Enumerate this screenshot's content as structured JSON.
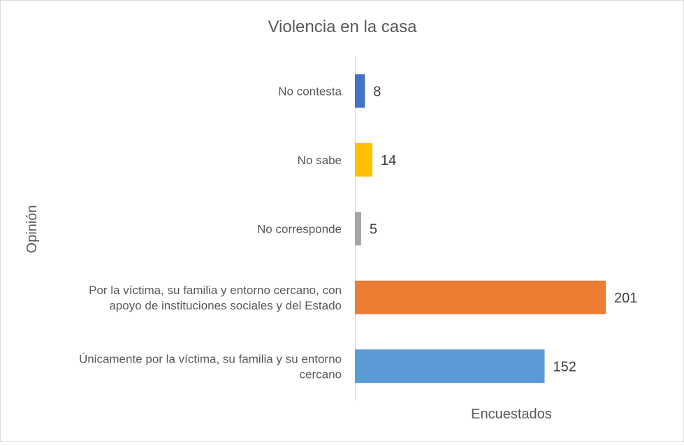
{
  "chart_data": {
    "type": "bar",
    "orientation": "horizontal",
    "title": "Violencia en la casa",
    "xlabel": "Encuestados",
    "ylabel": "Opinión",
    "categories": [
      "No contesta",
      "No sabe",
      "No corresponde",
      "Por la víctima, su familia y entorno cercano, con apoyo de instituciones sociales y del Estado",
      "Únicamente por la víctima, su familia y su entorno cercano"
    ],
    "category_lines": [
      [
        "No contesta"
      ],
      [
        "No sabe"
      ],
      [
        "No corresponde"
      ],
      [
        "Por la víctima, su familia y entorno cercano, con",
        "apoyo de instituciones sociales y del Estado"
      ],
      [
        "Únicamente por la víctima, su familia y su entorno",
        "cercano"
      ]
    ],
    "values": [
      8,
      14,
      5,
      201,
      152
    ],
    "colors": [
      "#4472c4",
      "#ffc000",
      "#a5a5a5",
      "#ed7d31",
      "#5b9bd5"
    ],
    "xlim": [
      0,
      210
    ],
    "grid": false,
    "legend": "none",
    "data_labels": true
  }
}
